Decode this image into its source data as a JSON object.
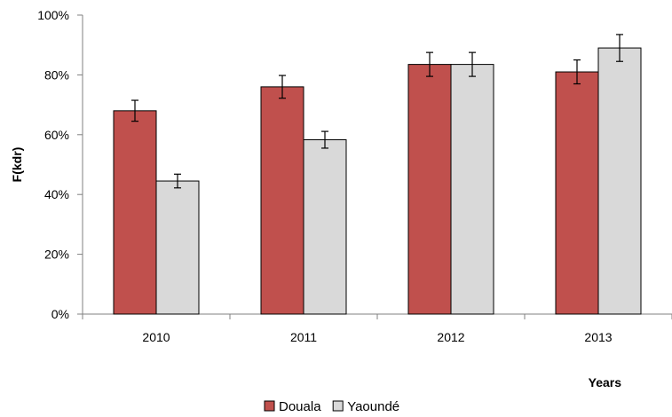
{
  "chart_data": {
    "type": "bar",
    "categories": [
      "2010",
      "2011",
      "2012",
      "2013"
    ],
    "series": [
      {
        "name": "Douala",
        "color": "#c0504d",
        "values": [
          68,
          76,
          83.5,
          81
        ],
        "errors": [
          3.5,
          3.8,
          4.0,
          4.0
        ]
      },
      {
        "name": "Yaoundé",
        "color": "#d9d9d9",
        "values": [
          44.5,
          58.3,
          83.5,
          89
        ],
        "errors": [
          2.3,
          2.8,
          4.0,
          4.5
        ]
      }
    ],
    "ylabel": "F(kdr)",
    "xlabel": "Years",
    "ylim": [
      0,
      100
    ],
    "yticks": [
      "0%",
      "20%",
      "40%",
      "60%",
      "80%",
      "100%"
    ],
    "ytick_values": [
      0,
      20,
      40,
      60,
      80,
      100
    ],
    "legend_position": "bottom-center",
    "grid": false
  }
}
